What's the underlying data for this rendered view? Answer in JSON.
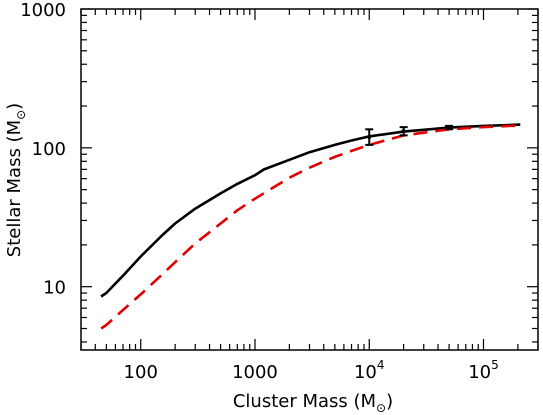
{
  "chart_data": {
    "type": "line",
    "xlabel": "Cluster Mass (M⊙)",
    "ylabel": "Stellar Mass (M⊙)",
    "xlabel_text": "Cluster Mass (M",
    "ylabel_text": "Stellar Mass (M",
    "mass_symbol": "⊙",
    "x_scale": "log",
    "y_scale": "log",
    "xlim": [
      30,
      300000
    ],
    "ylim": [
      3.5,
      1000
    ],
    "x_ticks": [
      {
        "value": 100,
        "label": "100"
      },
      {
        "value": 1000,
        "label": "1000"
      },
      {
        "value": 10000,
        "base": "10",
        "exp": "4"
      },
      {
        "value": 100000,
        "base": "10",
        "exp": "5"
      }
    ],
    "y_ticks": [
      {
        "value": 10,
        "label": "10"
      },
      {
        "value": 100,
        "label": "100"
      },
      {
        "value": 1000,
        "label": "1000"
      }
    ],
    "grid": false,
    "legend": "none",
    "series": [
      {
        "style": "solid",
        "color": "#000000",
        "x": [
          45,
          50,
          70,
          100,
          150,
          200,
          300,
          500,
          700,
          1000,
          1200,
          2000,
          3000,
          5000,
          7000,
          10000,
          20000,
          50000,
          100000,
          210000
        ],
        "y": [
          8.5,
          9.0,
          12.0,
          16.5,
          23.0,
          28.5,
          36.5,
          47.0,
          55.0,
          63.5,
          70.0,
          82.0,
          93.0,
          105.0,
          113.0,
          121.0,
          131.0,
          140.0,
          144.0,
          147.0
        ]
      },
      {
        "style": "dashed",
        "color": "#e00000",
        "x": [
          45,
          50,
          70,
          100,
          150,
          200,
          300,
          500,
          700,
          1000,
          2000,
          3000,
          5000,
          7000,
          10000,
          20000,
          50000,
          100000,
          210000
        ],
        "y": [
          5.0,
          5.3,
          6.8,
          8.8,
          12.0,
          15.0,
          20.5,
          28.5,
          35.5,
          43.0,
          61.0,
          72.0,
          86.0,
          95.0,
          105.0,
          123.0,
          136.0,
          141.0,
          145.0
        ]
      }
    ],
    "error_bars": [
      {
        "x": 10000,
        "y": 120,
        "ylow": 105,
        "yhigh": 136
      },
      {
        "x": 20000,
        "y": 132,
        "ylow": 123,
        "yhigh": 141
      },
      {
        "x": 50000,
        "y": 140,
        "ylow": 136,
        "yhigh": 144
      }
    ]
  }
}
